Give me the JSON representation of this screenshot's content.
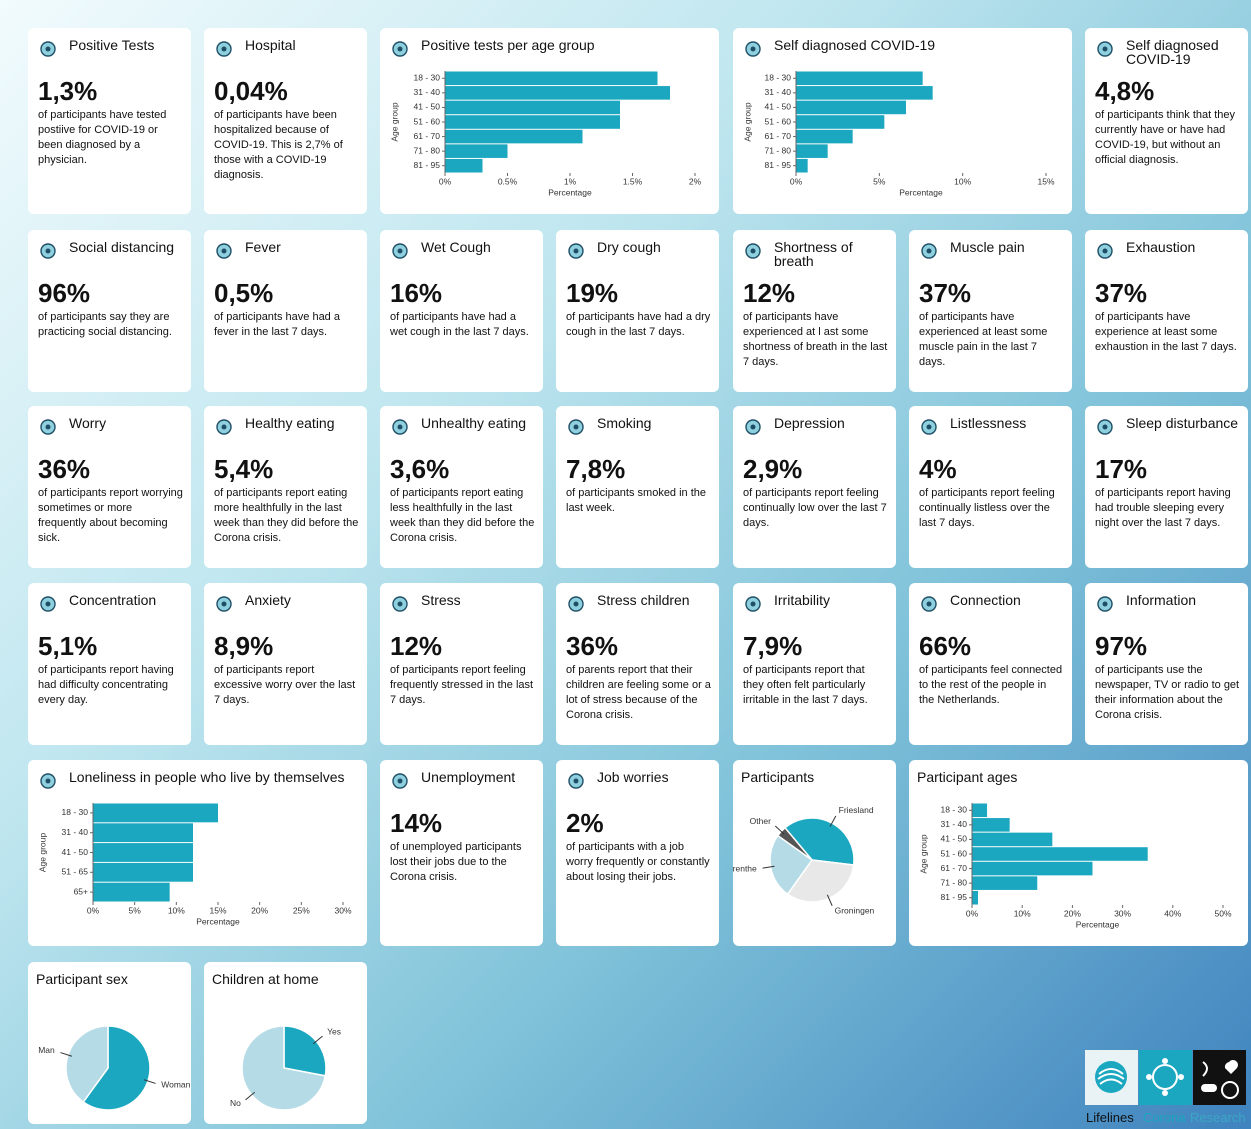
{
  "stat_cards": [
    {
      "title": "Positive Tests",
      "value": "1,3%",
      "text": "of participants have tested postiive for COVID-19 or been diagnosed by a physician."
    },
    {
      "title": "Hospital",
      "value": "0,04%",
      "text": "of participants have been hospitalized because of COVID-19. This is 2,7% of those with a COVID-19 diagnosis."
    },
    {
      "title": "Self diagnosed COVID-19",
      "value": "4,8%",
      "text": "of participants think that they currently have or have had COVID-19, but without an official diagnosis."
    },
    {
      "title": "Social distancing",
      "value": "96%",
      "text": "of participants say they are practicing social distancing."
    },
    {
      "title": "Fever",
      "value": "0,5%",
      "text": "of participants have had a fever in the last 7 days."
    },
    {
      "title": "Wet Cough",
      "value": "16%",
      "text": "of participants have had a wet cough in the last 7 days."
    },
    {
      "title": "Dry cough",
      "value": "19%",
      "text": "of participants have had a dry cough in the last 7 days."
    },
    {
      "title": "Shortness of breath",
      "value": "12%",
      "text": "of participants have experienced at l ast some shortness of breath in the last 7 days."
    },
    {
      "title": "Muscle pain",
      "value": "37%",
      "text": "of participants have experienced at least some muscle pain in the last 7 days."
    },
    {
      "title": "Exhaustion",
      "value": "37%",
      "text": "of participants have experience at least some exhaustion in the last 7 days."
    },
    {
      "title": "Worry",
      "value": "36%",
      "text": "of participants report worrying sometimes or more frequently about becoming sick."
    },
    {
      "title": "Healthy eating",
      "value": "5,4%",
      "text": "of participants report eating more healthfully in the last week than they did before the Corona crisis."
    },
    {
      "title": "Unhealthy eating",
      "value": "3,6%",
      "text": "of participants report eating less healthfully in the last week than they did before the Corona crisis."
    },
    {
      "title": "Smoking",
      "value": "7,8%",
      "text": "of participants smoked in the last week."
    },
    {
      "title": "Depression",
      "value": "2,9%",
      "text": "of participants report feeling continually low over the last 7 days."
    },
    {
      "title": "Listlessness",
      "value": "4%",
      "text": "of participants report feeling continually listless over the last 7 days."
    },
    {
      "title": "Sleep disturbance",
      "value": "17%",
      "text": "of participants report having had trouble sleeping every night over the last 7 days."
    },
    {
      "title": "Concentration",
      "value": "5,1%",
      "text": "of participants report having had difficulty concentrating every day."
    },
    {
      "title": "Anxiety",
      "value": "8,9%",
      "text": "of participants report excessive worry over the last 7 days."
    },
    {
      "title": "Stress",
      "value": "12%",
      "text": "of participants report feeling frequently stressed in the last 7 days."
    },
    {
      "title": "Stress children",
      "value": "36%",
      "text": "of parents report that their children are feeling some or a lot of stress because of the Corona crisis."
    },
    {
      "title": "Irritability",
      "value": "7,9%",
      "text": "of participants report that they often felt particularly irritable in the last 7 days."
    },
    {
      "title": "Connection",
      "value": "66%",
      "text": "of participants feel connected to the rest of the people in the Netherlands."
    },
    {
      "title": "Information",
      "value": "97%",
      "text": "of participants use the newspaper, TV or radio to get their information about the Corona crisis."
    },
    {
      "title": "Unemployment",
      "value": "14%",
      "text": "of unemployed participants lost their jobs due to the Corona crisis."
    },
    {
      "title": "Job worries",
      "value": "2%",
      "text": "of participants with a job worry frequently or constantly about losing their jobs."
    }
  ],
  "chart_data": [
    {
      "type": "hbar",
      "title": "Positive tests per age group",
      "ylabel": "Age group",
      "xlabel": "Percentage",
      "color": "#1aa7bf",
      "categories": [
        "18 - 30",
        "31 - 40",
        "41 - 50",
        "51 - 60",
        "61 - 70",
        "71 - 80",
        "81 - 95"
      ],
      "values": [
        1.7,
        1.8,
        1.4,
        1.4,
        1.1,
        0.5,
        0.3
      ],
      "xlim": [
        0,
        2
      ],
      "xticks": [
        {
          "value": 0,
          "label": "0%"
        },
        {
          "value": 0.5,
          "label": "0.5%"
        },
        {
          "value": 1,
          "label": "1%"
        },
        {
          "value": 1.5,
          "label": "1.5%"
        },
        {
          "value": 2,
          "label": "2%"
        }
      ]
    },
    {
      "type": "hbar",
      "title": "Self diagnosed COVID-19",
      "ylabel": "Age group",
      "xlabel": "Percentage",
      "color": "#1aa7bf",
      "categories": [
        "18 - 30",
        "31 - 40",
        "41 - 50",
        "51 - 60",
        "61 - 70",
        "71 - 80",
        "81 - 95"
      ],
      "values": [
        7.6,
        8.2,
        6.6,
        5.3,
        3.4,
        1.9,
        0.7
      ],
      "xlim": [
        0,
        15
      ],
      "xticks": [
        {
          "value": 0,
          "label": "0%"
        },
        {
          "value": 5,
          "label": "5%"
        },
        {
          "value": 10,
          "label": "10%"
        },
        {
          "value": 15,
          "label": "15%"
        }
      ]
    },
    {
      "type": "hbar",
      "title": "Loneliness in people who live by themselves",
      "ylabel": "Age group",
      "xlabel": "Percentage",
      "color": "#1aa7bf",
      "categories": [
        "18 - 30",
        "31 - 40",
        "41 - 50",
        "51 - 65",
        "65+"
      ],
      "values": [
        15,
        12,
        12,
        12,
        9.2
      ],
      "xlim": [
        0,
        30
      ],
      "xticks": [
        {
          "value": 0,
          "label": "0%"
        },
        {
          "value": 5,
          "label": "5%"
        },
        {
          "value": 10,
          "label": "10%"
        },
        {
          "value": 15,
          "label": "15%"
        },
        {
          "value": 20,
          "label": "20%"
        },
        {
          "value": 25,
          "label": "25%"
        },
        {
          "value": 30,
          "label": "30%"
        }
      ]
    },
    {
      "type": "pie",
      "title": "Participants",
      "categories": [
        "Friesland",
        "Groningen",
        "Drenthe",
        "Other"
      ],
      "values": [
        38,
        33,
        25,
        4
      ],
      "colors": [
        "#1aa7bf",
        "#e8e8e8",
        "#b5dbe6",
        "#555555"
      ]
    },
    {
      "type": "hbar",
      "title": "Participant ages",
      "ylabel": "Age group",
      "xlabel": "Percentage",
      "color": "#1aa7bf",
      "categories": [
        "18 - 30",
        "31 - 40",
        "41 - 50",
        "51 - 60",
        "61 - 70",
        "71 - 80",
        "81 - 95"
      ],
      "values": [
        3,
        7.5,
        16,
        35,
        24,
        13,
        1.2
      ],
      "xlim": [
        0,
        50
      ],
      "xticks": [
        {
          "value": 0,
          "label": "0%"
        },
        {
          "value": 10,
          "label": "10%"
        },
        {
          "value": 20,
          "label": "20%"
        },
        {
          "value": 30,
          "label": "30%"
        },
        {
          "value": 40,
          "label": "40%"
        },
        {
          "value": 50,
          "label": "50%"
        }
      ]
    },
    {
      "type": "pie",
      "title": "Participant sex",
      "categories": [
        "Woman",
        "Man"
      ],
      "values": [
        60,
        40
      ],
      "colors": [
        "#1aa7bf",
        "#b5dbe6"
      ]
    },
    {
      "type": "pie",
      "title": "Children at home",
      "categories": [
        "Yes",
        "No"
      ],
      "values": [
        28,
        72
      ],
      "colors": [
        "#1aa7bf",
        "#b5dbe6"
      ]
    }
  ],
  "logo": {
    "left": "Lifelines",
    "middle": "Corona",
    "right": "Research"
  }
}
